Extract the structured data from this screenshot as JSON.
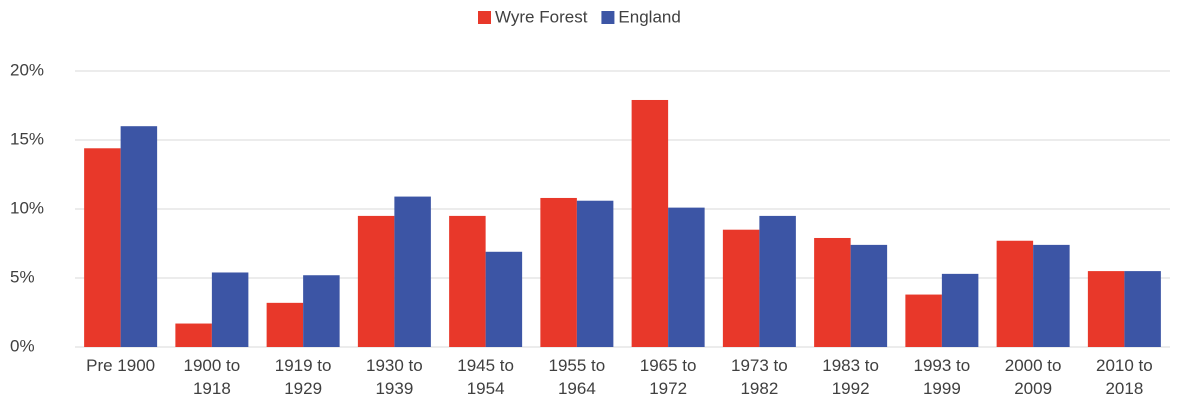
{
  "chart_data": {
    "type": "bar",
    "categories": [
      "Pre 1900",
      "1900 to 1918",
      "1919 to 1929",
      "1930 to 1939",
      "1945 to 1954",
      "1955 to 1964",
      "1965 to 1972",
      "1973 to 1982",
      "1983 to 1992",
      "1993 to 1999",
      "2000 to 2009",
      "2010 to 2018"
    ],
    "series": [
      {
        "name": "Wyre Forest",
        "color": "#e8382a",
        "values": [
          14.4,
          1.7,
          3.2,
          9.5,
          9.5,
          10.8,
          17.9,
          8.5,
          7.9,
          3.8,
          7.7,
          5.5
        ]
      },
      {
        "name": "England",
        "color": "#3c55a5",
        "values": [
          16.0,
          5.4,
          5.2,
          10.9,
          6.9,
          10.6,
          10.1,
          9.5,
          7.4,
          5.3,
          7.4,
          5.5
        ]
      }
    ],
    "ylim": [
      0,
      20
    ],
    "yticks": [
      {
        "value": 0,
        "label": "0%"
      },
      {
        "value": 5,
        "label": "5%"
      },
      {
        "value": 10,
        "label": "10%"
      },
      {
        "value": 15,
        "label": "15%"
      },
      {
        "value": 20,
        "label": "20%"
      }
    ],
    "grid": true,
    "legend": "top"
  }
}
